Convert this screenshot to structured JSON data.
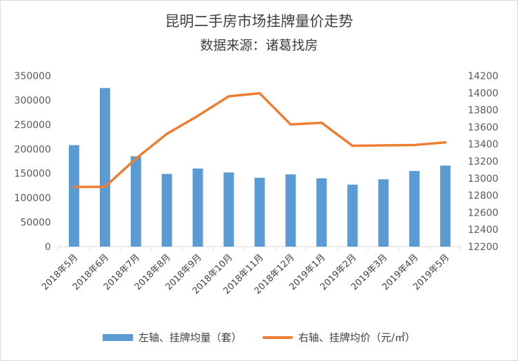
{
  "chart_data": {
    "type": "bar+line",
    "title": "昆明二手房市场挂牌量价走势",
    "subtitle": "数据来源：诸葛找房",
    "categories": [
      "2018年5月",
      "2018年6月",
      "2018年7月",
      "2018年8月",
      "2018年9月",
      "2018年10月",
      "2018年11月",
      "2018年12月",
      "2019年1月",
      "2019年2月",
      "2019年3月",
      "2019年4月",
      "2019年5月"
    ],
    "series": [
      {
        "name": "左轴、挂牌均量（套）",
        "type": "bar",
        "axis": "left",
        "color": "#5b9bd5",
        "values": [
          208000,
          325000,
          185000,
          149000,
          160000,
          152000,
          141000,
          148000,
          140000,
          127000,
          138000,
          155000,
          166000
        ]
      },
      {
        "name": "右轴、挂牌均价（元/㎡）",
        "type": "line",
        "axis": "right",
        "color": "#ed7d31",
        "values": [
          12900,
          12900,
          13230,
          13520,
          13730,
          13960,
          13995,
          13630,
          13650,
          13380,
          13385,
          13390,
          13420
        ]
      }
    ],
    "y_left": {
      "ylim": [
        0,
        350000
      ],
      "ticks": [
        "0",
        "50000",
        "100000",
        "150000",
        "200000",
        "250000",
        "300000",
        "350000"
      ]
    },
    "y_right": {
      "ylim": [
        12200,
        14200
      ],
      "ticks": [
        "12200",
        "12400",
        "12600",
        "12800",
        "13000",
        "13200",
        "13400",
        "13600",
        "13800",
        "14000",
        "14200"
      ]
    },
    "grid": false,
    "legend_position": "bottom"
  }
}
